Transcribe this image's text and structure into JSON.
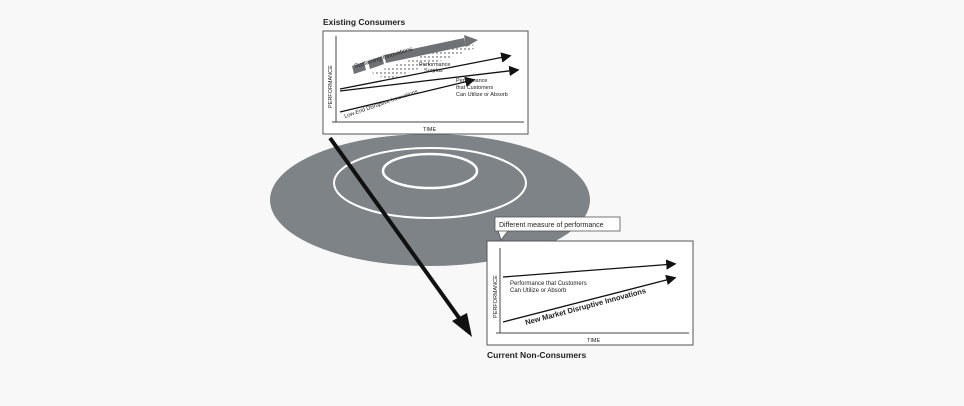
{
  "top_panel": {
    "title": "Existing Consumers",
    "y_axis": "PERFORMANCE",
    "x_axis": "TIME",
    "sustaining_label": "Sustaining Innovations",
    "surplus_label_1": "Performance",
    "surplus_label_2": "Surplus",
    "customer_label_1": "Performance",
    "customer_label_2": "that Customers",
    "customer_label_3": "Can Utilize or Absorb",
    "lowend_label": "Low-End Disruptive Innovations"
  },
  "bottom_panel": {
    "callout": "Different measure of performance",
    "y_axis": "PERFORMANCE",
    "x_axis": "TIME",
    "customer_label_1": "Performance that Customers",
    "customer_label_2": "Can Utilize or Absorb",
    "newmarket_label": "New Market Disruptive Innovations",
    "title": "Current Non-Consumers"
  },
  "colors": {
    "disc": "#7d8386",
    "ring": "#ffffff",
    "panel_border": "#555555",
    "bar": "#6e7276",
    "arrow": "#111111"
  }
}
